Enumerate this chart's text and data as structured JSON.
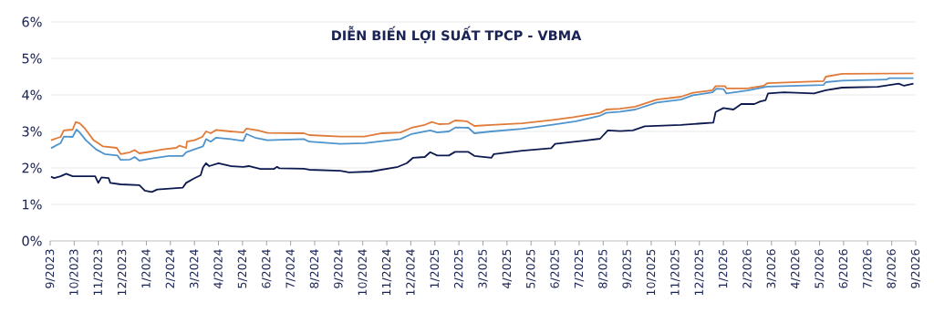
{
  "chart_data": {
    "type": "line",
    "title": "DIỄN BIẾN LỢI SUẤT TPCP - VBMA",
    "grid": "y",
    "xlim": [
      "2023-09-01",
      "2026-09-01"
    ],
    "ylim": [
      0,
      6
    ],
    "yticks": [
      {
        "value": 0,
        "label": "0%"
      },
      {
        "value": 1,
        "label": "1%"
      },
      {
        "value": 2,
        "label": "2%"
      },
      {
        "value": 3,
        "label": "3%"
      },
      {
        "value": 4,
        "label": "4%"
      },
      {
        "value": 5,
        "label": "5%"
      },
      {
        "value": 6,
        "label": "6%"
      }
    ],
    "xticks": [
      {
        "value": "2023-09-01",
        "label": "9/2023"
      },
      {
        "value": "2023-10-01",
        "label": "10/2023"
      },
      {
        "value": "2023-11-01",
        "label": "11/2023"
      },
      {
        "value": "2023-12-01",
        "label": "12/2023"
      },
      {
        "value": "2024-01-01",
        "label": "1/2024"
      },
      {
        "value": "2024-02-01",
        "label": "2/2024"
      },
      {
        "value": "2024-03-01",
        "label": "3/2024"
      },
      {
        "value": "2024-04-01",
        "label": "4/2024"
      },
      {
        "value": "2024-05-01",
        "label": "5/2024"
      },
      {
        "value": "2024-06-01",
        "label": "6/2024"
      },
      {
        "value": "2024-07-01",
        "label": "7/2024"
      },
      {
        "value": "2024-08-01",
        "label": "8/2024"
      },
      {
        "value": "2024-09-01",
        "label": "9/2024"
      },
      {
        "value": "2024-10-01",
        "label": "10/2024"
      },
      {
        "value": "2024-11-01",
        "label": "11/2024"
      },
      {
        "value": "2024-12-01",
        "label": "12/2024"
      },
      {
        "value": "2025-01-01",
        "label": "1/2025"
      },
      {
        "value": "2025-02-01",
        "label": "2/2025"
      },
      {
        "value": "2025-03-01",
        "label": "3/2025"
      },
      {
        "value": "2025-04-01",
        "label": "4/2025"
      },
      {
        "value": "2025-05-01",
        "label": "5/2025"
      },
      {
        "value": "2025-06-01",
        "label": "6/2025"
      },
      {
        "value": "2025-07-01",
        "label": "7/2025"
      },
      {
        "value": "2025-08-01",
        "label": "8/2025"
      },
      {
        "value": "2025-09-01",
        "label": "9/2025"
      },
      {
        "value": "2025-10-01",
        "label": "10/2025"
      },
      {
        "value": "2025-11-01",
        "label": "11/2025"
      },
      {
        "value": "2025-12-01",
        "label": "12/2025"
      },
      {
        "value": "2026-01-01",
        "label": "1/2026"
      },
      {
        "value": "2026-02-01",
        "label": "2/2026"
      },
      {
        "value": "2026-03-01",
        "label": "3/2026"
      },
      {
        "value": "2026-04-01",
        "label": "4/2026"
      },
      {
        "value": "2026-05-01",
        "label": "5/2026"
      },
      {
        "value": "2026-06-01",
        "label": "6/2026"
      },
      {
        "value": "2026-07-01",
        "label": "7/2026"
      },
      {
        "value": "2026-08-01",
        "label": "8/2026"
      },
      {
        "value": "2026-09-01",
        "label": "9/2026"
      }
    ],
    "series": [
      {
        "color": "#e07b39",
        "x": [
          "2023-09-02",
          "2023-09-14",
          "2023-09-18",
          "2023-09-29",
          "2023-10-03",
          "2023-10-08",
          "2023-10-14",
          "2023-10-26",
          "2023-11-07",
          "2023-11-24",
          "2023-11-29",
          "2023-12-11",
          "2023-12-17",
          "2023-12-23",
          "2024-01-08",
          "2024-01-23",
          "2024-02-08",
          "2024-02-12",
          "2024-02-20",
          "2024-02-21",
          "2024-03-01",
          "2024-03-11",
          "2024-03-16",
          "2024-03-22",
          "2024-03-29",
          "2024-04-16",
          "2024-05-02",
          "2024-05-06",
          "2024-05-21",
          "2024-06-02",
          "2024-07-18",
          "2024-07-25",
          "2024-09-03",
          "2024-10-03",
          "2024-10-26",
          "2024-11-18",
          "2024-12-02",
          "2024-12-19",
          "2024-12-28",
          "2025-01-06",
          "2025-01-19",
          "2025-01-27",
          "2025-02-10",
          "2025-02-19",
          "2025-03-12",
          "2025-04-20",
          "2025-05-27",
          "2025-06-24",
          "2025-07-28",
          "2025-08-05",
          "2025-08-23",
          "2025-09-11",
          "2025-10-08",
          "2025-11-08",
          "2025-11-23",
          "2025-12-18",
          "2025-12-22",
          "2026-01-03",
          "2026-01-05",
          "2026-02-01",
          "2026-02-20",
          "2026-02-24",
          "2026-05-06",
          "2026-05-09",
          "2026-05-30",
          "2026-08-29"
        ],
        "values": [
          2.76,
          2.85,
          3.03,
          3.05,
          3.26,
          3.22,
          3.1,
          2.76,
          2.59,
          2.55,
          2.38,
          2.43,
          2.49,
          2.4,
          2.45,
          2.51,
          2.55,
          2.61,
          2.55,
          2.72,
          2.76,
          2.85,
          3.0,
          2.95,
          3.04,
          3.0,
          2.97,
          3.08,
          3.03,
          2.96,
          2.95,
          2.9,
          2.86,
          2.86,
          2.95,
          2.97,
          3.1,
          3.18,
          3.26,
          3.2,
          3.21,
          3.3,
          3.28,
          3.15,
          3.18,
          3.22,
          3.31,
          3.39,
          3.51,
          3.6,
          3.62,
          3.68,
          3.87,
          3.95,
          4.06,
          4.13,
          4.24,
          4.24,
          4.18,
          4.18,
          4.25,
          4.32,
          4.38,
          4.5,
          4.58,
          4.59
        ]
      },
      {
        "color": "#4f94cd",
        "x": [
          "2023-09-02",
          "2023-09-14",
          "2023-09-18",
          "2023-09-29",
          "2023-10-04",
          "2023-10-08",
          "2023-10-16",
          "2023-10-29",
          "2023-11-09",
          "2023-11-25",
          "2023-11-29",
          "2023-12-11",
          "2023-12-17",
          "2023-12-23",
          "2024-01-08",
          "2024-01-30",
          "2024-02-16",
          "2024-02-20",
          "2024-03-01",
          "2024-03-12",
          "2024-03-16",
          "2024-03-22",
          "2024-03-29",
          "2024-04-16",
          "2024-05-02",
          "2024-05-06",
          "2024-05-17",
          "2024-06-02",
          "2024-07-18",
          "2024-07-25",
          "2024-09-03",
          "2024-10-03",
          "2024-11-18",
          "2024-12-02",
          "2024-12-26",
          "2025-01-04",
          "2025-01-19",
          "2025-01-28",
          "2025-02-12",
          "2025-02-19",
          "2025-03-12",
          "2025-04-20",
          "2025-05-27",
          "2025-06-27",
          "2025-07-28",
          "2025-08-05",
          "2025-08-23",
          "2025-09-11",
          "2025-10-08",
          "2025-11-08",
          "2025-11-23",
          "2025-12-18",
          "2025-12-23",
          "2026-01-01",
          "2026-01-05",
          "2026-02-01",
          "2026-02-24",
          "2026-05-06",
          "2026-05-09",
          "2026-05-30",
          "2026-07-25",
          "2026-07-29",
          "2026-08-29"
        ],
        "values": [
          2.54,
          2.68,
          2.86,
          2.85,
          3.05,
          2.97,
          2.76,
          2.51,
          2.38,
          2.34,
          2.22,
          2.23,
          2.3,
          2.2,
          2.26,
          2.33,
          2.33,
          2.43,
          2.51,
          2.59,
          2.79,
          2.72,
          2.83,
          2.79,
          2.74,
          2.93,
          2.83,
          2.76,
          2.79,
          2.72,
          2.66,
          2.68,
          2.79,
          2.93,
          3.03,
          2.97,
          3.0,
          3.11,
          3.1,
          2.95,
          3.0,
          3.07,
          3.18,
          3.28,
          3.43,
          3.51,
          3.54,
          3.6,
          3.79,
          3.87,
          3.99,
          4.07,
          4.17,
          4.16,
          4.04,
          4.12,
          4.23,
          4.27,
          4.35,
          4.39,
          4.42,
          4.46,
          4.46
        ]
      },
      {
        "color": "#0d1a4f",
        "x": [
          "2023-09-02",
          "2023-09-06",
          "2023-09-14",
          "2023-09-21",
          "2023-09-29",
          "2023-10-28",
          "2023-11-01",
          "2023-11-05",
          "2023-11-14",
          "2023-11-16",
          "2023-11-29",
          "2023-12-23",
          "2023-12-30",
          "2024-01-08",
          "2024-01-15",
          "2024-02-16",
          "2024-02-20",
          "2024-03-01",
          "2024-03-09",
          "2024-03-12",
          "2024-03-16",
          "2024-03-20",
          "2024-04-01",
          "2024-04-16",
          "2024-05-02",
          "2024-05-09",
          "2024-05-24",
          "2024-06-10",
          "2024-06-14",
          "2024-06-17",
          "2024-07-18",
          "2024-07-25",
          "2024-09-03",
          "2024-09-14",
          "2024-10-11",
          "2024-11-15",
          "2024-11-26",
          "2024-12-04",
          "2024-12-19",
          "2024-12-26",
          "2025-01-04",
          "2025-01-19",
          "2025-01-27",
          "2025-02-12",
          "2025-02-19",
          "2025-03-12",
          "2025-03-15",
          "2025-04-20",
          "2025-05-27",
          "2025-06-01",
          "2025-07-05",
          "2025-07-28",
          "2025-08-07",
          "2025-08-23",
          "2025-09-08",
          "2025-09-23",
          "2025-11-08",
          "2025-12-19",
          "2025-12-22",
          "2026-01-01",
          "2026-01-14",
          "2026-01-24",
          "2026-02-09",
          "2026-02-16",
          "2026-02-22",
          "2026-02-25",
          "2026-03-17",
          "2026-04-24",
          "2026-05-09",
          "2026-05-30",
          "2026-07-14",
          "2026-08-10",
          "2026-08-17",
          "2026-08-29"
        ],
        "values": [
          1.76,
          1.72,
          1.77,
          1.84,
          1.77,
          1.77,
          1.59,
          1.74,
          1.72,
          1.59,
          1.55,
          1.53,
          1.38,
          1.34,
          1.41,
          1.46,
          1.59,
          1.72,
          1.8,
          2.01,
          2.13,
          2.05,
          2.13,
          2.05,
          2.03,
          2.05,
          1.97,
          1.97,
          2.03,
          1.99,
          1.98,
          1.95,
          1.92,
          1.88,
          1.9,
          2.03,
          2.13,
          2.28,
          2.3,
          2.43,
          2.34,
          2.34,
          2.44,
          2.44,
          2.33,
          2.28,
          2.38,
          2.47,
          2.54,
          2.66,
          2.74,
          2.8,
          3.03,
          3.01,
          3.03,
          3.14,
          3.18,
          3.24,
          3.53,
          3.64,
          3.6,
          3.75,
          3.75,
          3.82,
          3.85,
          4.04,
          4.07,
          4.04,
          4.13,
          4.2,
          4.22,
          4.31,
          4.25,
          4.31
        ]
      }
    ]
  }
}
